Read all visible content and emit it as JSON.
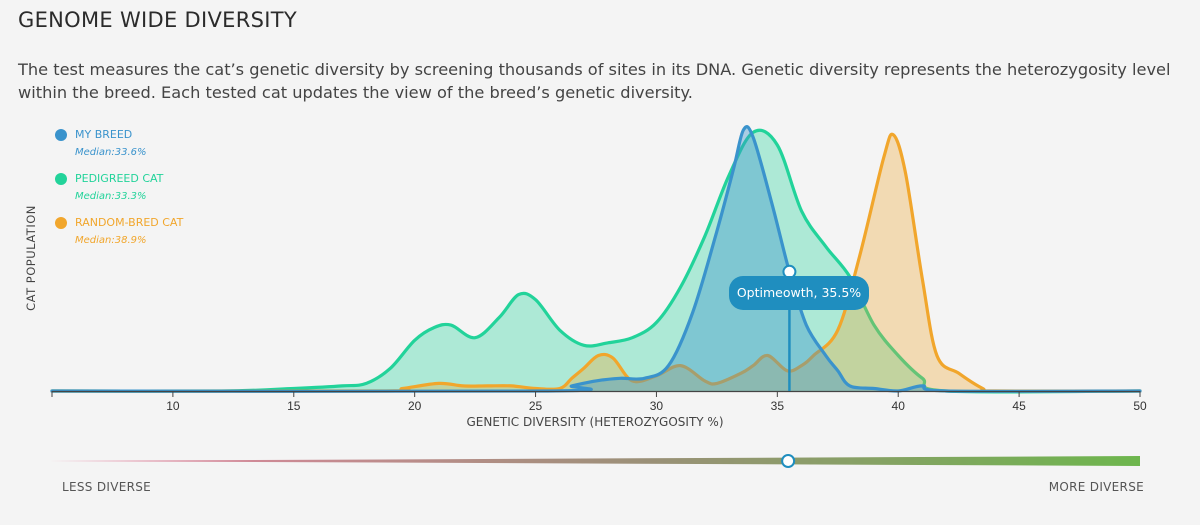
{
  "page": {
    "title": "GENOME WIDE DIVERSITY",
    "description": "The test measures the cat’s genetic diversity by screening thousands of sites in its DNA. Genetic diversity represents the heterozygosity level within the breed. Each tested cat updates the view of the breed’s genetic diversity."
  },
  "legend": [
    {
      "name": "MY BREED",
      "median": "Median:33.6%",
      "color": "#3a93cc"
    },
    {
      "name": "PEDIGREED CAT",
      "median": "Median:33.3%",
      "color": "#22d39a"
    },
    {
      "name": "RANDOM-BRED CAT",
      "median": "Median:38.9%",
      "color": "#f1a62c"
    }
  ],
  "tooltip": {
    "label": "Optimeowth, 35.5%"
  },
  "scale": {
    "left_label": "LESS DIVERSE",
    "right_label": "MORE DIVERSE",
    "marker_value": 35.5
  },
  "chart_data": {
    "type": "area",
    "xlabel": "GENETIC DIVERSITY (HETEROZYGOSITY %)",
    "ylabel": "CAT POPULATION",
    "xlim": [
      5,
      50
    ],
    "ylim": [
      0,
      1.1
    ],
    "xticks": [
      10,
      15,
      20,
      25,
      30,
      35,
      40,
      45,
      50
    ],
    "grid": false,
    "legend_position": "top-left",
    "marker": {
      "x": 35.5,
      "label": "Optimeowth, 35.5%"
    },
    "series": [
      {
        "name": "PEDIGREED CAT",
        "median": 33.3,
        "color": "#22d39a",
        "fill": "rgba(34,211,154,0.34)",
        "points": [
          [
            5,
            0
          ],
          [
            12,
            0
          ],
          [
            15,
            0.01
          ],
          [
            17,
            0.02
          ],
          [
            18,
            0.03
          ],
          [
            19,
            0.09
          ],
          [
            20,
            0.2
          ],
          [
            20.8,
            0.25
          ],
          [
            21.5,
            0.26
          ],
          [
            22.5,
            0.21
          ],
          [
            23.5,
            0.29
          ],
          [
            24.3,
            0.38
          ],
          [
            25,
            0.36
          ],
          [
            26,
            0.24
          ],
          [
            27,
            0.18
          ],
          [
            28,
            0.19
          ],
          [
            29,
            0.21
          ],
          [
            30,
            0.27
          ],
          [
            31,
            0.41
          ],
          [
            32,
            0.61
          ],
          [
            33,
            0.85
          ],
          [
            34,
            1.02
          ],
          [
            35,
            0.97
          ],
          [
            36,
            0.71
          ],
          [
            37,
            0.57
          ],
          [
            38,
            0.45
          ],
          [
            39,
            0.26
          ],
          [
            40,
            0.14
          ],
          [
            41,
            0.05
          ],
          [
            42,
            0
          ],
          [
            50,
            0
          ]
        ]
      },
      {
        "name": "RANDOM-BRED CAT",
        "median": 38.9,
        "color": "#f1a62c",
        "fill": "rgba(241,166,44,0.32)",
        "points": [
          [
            5,
            0
          ],
          [
            18.5,
            0
          ],
          [
            19.5,
            0.01
          ],
          [
            21,
            0.03
          ],
          [
            22,
            0.02
          ],
          [
            23,
            0.02
          ],
          [
            24,
            0.02
          ],
          [
            25,
            0.01
          ],
          [
            26,
            0.01
          ],
          [
            26.5,
            0.05
          ],
          [
            27,
            0.09
          ],
          [
            27.6,
            0.14
          ],
          [
            28.2,
            0.13
          ],
          [
            29,
            0.04
          ],
          [
            30,
            0.06
          ],
          [
            31,
            0.1
          ],
          [
            32,
            0.04
          ],
          [
            32.5,
            0.03
          ],
          [
            33.5,
            0.07
          ],
          [
            34,
            0.1
          ],
          [
            34.6,
            0.14
          ],
          [
            35.4,
            0.08
          ],
          [
            36,
            0.1
          ],
          [
            36.5,
            0.14
          ],
          [
            37.5,
            0.24
          ],
          [
            38.4,
            0.53
          ],
          [
            39.4,
            0.92
          ],
          [
            39.8,
            1.01
          ],
          [
            40.3,
            0.86
          ],
          [
            41,
            0.44
          ],
          [
            41.6,
            0.14
          ],
          [
            42.5,
            0.07
          ],
          [
            43.5,
            0.01
          ],
          [
            44,
            0
          ],
          [
            50,
            0
          ]
        ]
      },
      {
        "name": "MY BREED",
        "median": 33.6,
        "color": "#3a93cc",
        "fill": "rgba(58,147,204,0.4)",
        "points": [
          [
            5,
            0
          ],
          [
            25.5,
            0
          ],
          [
            26.5,
            0.02
          ],
          [
            27.5,
            0.04
          ],
          [
            28.5,
            0.05
          ],
          [
            29.5,
            0.05
          ],
          [
            30.5,
            0.1
          ],
          [
            31.5,
            0.31
          ],
          [
            32.5,
            0.63
          ],
          [
            33.2,
            0.88
          ],
          [
            33.6,
            1.03
          ],
          [
            34,
            1.0
          ],
          [
            34.8,
            0.73
          ],
          [
            35.5,
            0.47
          ],
          [
            36.2,
            0.26
          ],
          [
            37,
            0.14
          ],
          [
            37.5,
            0.08
          ],
          [
            38,
            0.02
          ],
          [
            39,
            0.01
          ],
          [
            40,
            0
          ],
          [
            41,
            0.02
          ],
          [
            42,
            0
          ],
          [
            50,
            0
          ]
        ]
      }
    ]
  }
}
